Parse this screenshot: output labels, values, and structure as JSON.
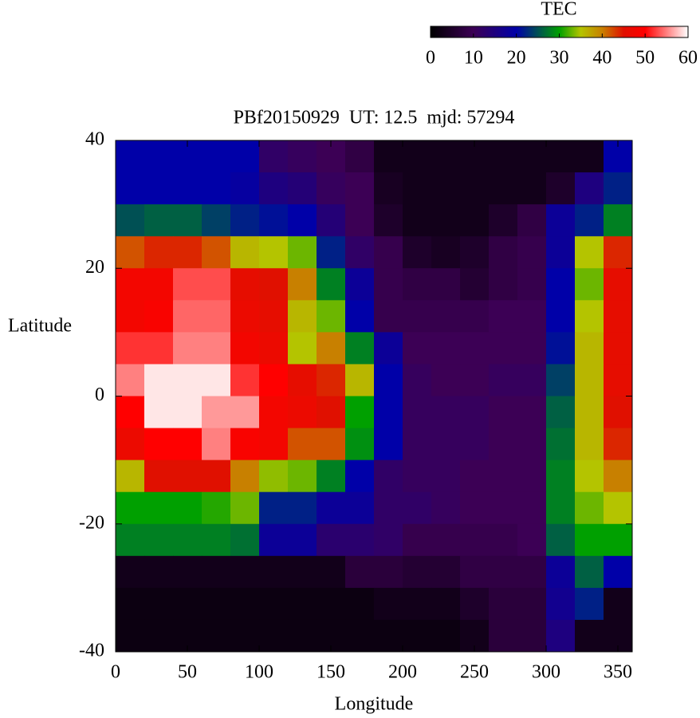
{
  "chart_data": {
    "type": "heatmap",
    "title": "PBf20150929  UT: 12.5  mjd: 57294",
    "x_label": "Longitude",
    "y_label": "Latitude",
    "colorbar_label": "TEC",
    "x": [
      10,
      30,
      50,
      70,
      90,
      110,
      130,
      150,
      170,
      190,
      210,
      230,
      250,
      270,
      290,
      310,
      330,
      350
    ],
    "y": [
      37.5,
      32.5,
      27.5,
      22.5,
      17.5,
      12.5,
      7.5,
      2.5,
      -2.5,
      -7.5,
      -12.5,
      -17.5,
      -22.5,
      -27.5,
      -32.5,
      -37.5
    ],
    "z": [
      [
        20,
        20,
        20,
        20,
        20,
        12,
        11,
        10,
        8,
        3,
        3,
        3,
        3,
        3,
        3,
        3,
        3,
        20
      ],
      [
        20,
        20,
        20,
        20,
        19,
        15,
        14,
        11,
        10,
        4,
        3,
        3,
        3,
        3,
        3,
        5,
        15,
        22
      ],
      [
        25,
        26,
        26,
        24,
        22,
        21,
        20,
        14,
        10,
        5,
        3,
        3,
        3,
        5,
        8,
        18,
        22,
        28
      ],
      [
        42,
        44,
        44,
        42,
        36,
        35,
        33,
        22,
        12,
        9,
        5,
        4,
        5,
        8,
        9,
        18,
        35,
        44
      ],
      [
        48,
        48,
        53,
        53,
        46,
        45,
        40,
        28,
        18,
        9,
        8,
        8,
        6,
        8,
        9,
        20,
        33,
        46
      ],
      [
        48,
        49,
        54,
        54,
        47,
        46,
        36,
        33,
        20,
        9,
        9,
        9,
        9,
        10,
        10,
        20,
        35,
        46
      ],
      [
        52,
        52,
        55,
        55,
        48,
        47,
        35,
        40,
        28,
        18,
        10,
        10,
        10,
        10,
        10,
        21,
        36,
        46
      ],
      [
        55,
        59,
        59,
        59,
        52,
        50,
        46,
        44,
        36,
        20,
        11,
        10,
        10,
        11,
        11,
        24,
        36,
        46
      ],
      [
        50,
        59,
        59,
        56,
        56,
        48,
        47,
        45,
        30,
        20,
        11,
        11,
        11,
        10,
        10,
        26,
        36,
        45
      ],
      [
        47,
        50,
        50,
        55,
        49,
        48,
        42,
        42,
        29,
        20,
        11,
        11,
        11,
        10,
        10,
        27,
        36,
        44
      ],
      [
        36,
        45,
        45,
        45,
        40,
        34,
        33,
        28,
        20,
        12,
        11,
        11,
        10,
        10,
        10,
        28,
        35,
        40
      ],
      [
        30,
        30,
        30,
        31,
        33,
        22,
        22,
        18,
        18,
        12,
        12,
        11,
        10,
        10,
        10,
        28,
        33,
        35
      ],
      [
        28,
        28,
        28,
        28,
        27,
        18,
        18,
        13,
        13,
        12,
        9,
        9,
        9,
        9,
        10,
        26,
        30,
        30
      ],
      [
        3,
        3,
        3,
        3,
        3,
        3,
        3,
        3,
        7,
        7,
        6,
        6,
        8,
        8,
        8,
        18,
        26,
        20
      ],
      [
        2,
        2,
        2,
        2,
        2,
        2,
        2,
        2,
        2,
        3,
        3,
        3,
        5,
        7,
        7,
        17,
        22,
        3
      ],
      [
        2,
        2,
        2,
        2,
        2,
        2,
        2,
        2,
        2,
        2,
        2,
        2,
        3,
        7,
        7,
        15,
        3,
        3
      ]
    ],
    "xlim": [
      0,
      360
    ],
    "xticks": [
      0,
      50,
      100,
      150,
      200,
      250,
      300,
      350
    ],
    "ylim": [
      -40,
      40
    ],
    "yticks": [
      -40,
      -20,
      0,
      20,
      40
    ],
    "clim": [
      0,
      60
    ],
    "cticks": [
      0,
      10,
      20,
      30,
      40,
      50,
      60
    ],
    "colorscale": [
      [
        0,
        "#000000"
      ],
      [
        10,
        "#3c0055"
      ],
      [
        20,
        "#0000a8"
      ],
      [
        30,
        "#00a000"
      ],
      [
        35,
        "#b4c400"
      ],
      [
        40,
        "#c88000"
      ],
      [
        45,
        "#e01000"
      ],
      [
        50,
        "#ff0000"
      ],
      [
        60,
        "#ffffff"
      ]
    ]
  }
}
